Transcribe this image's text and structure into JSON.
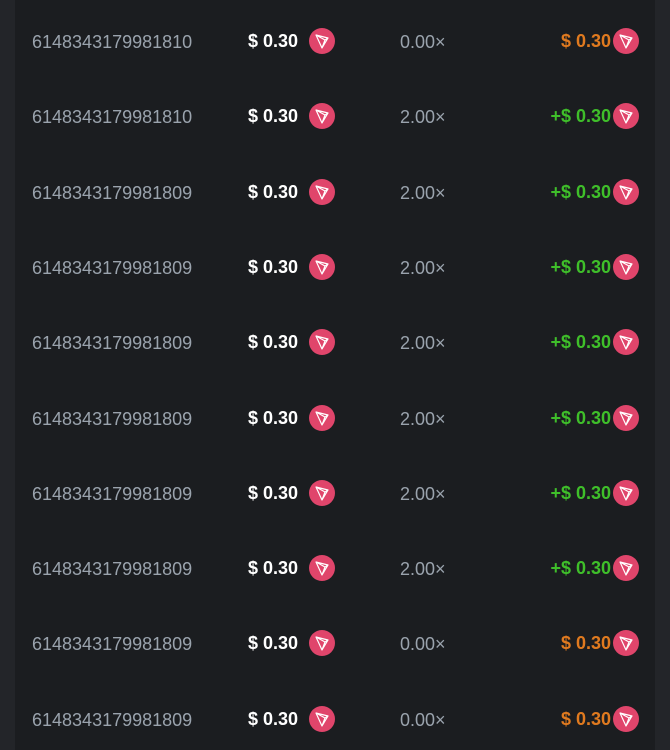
{
  "colors": {
    "loss": "#e07a1f",
    "win": "#3fbf2a",
    "coin": "#e0456b"
  },
  "coin_icon": "tron-icon",
  "rows": [
    {
      "id": "6148343179981810",
      "bet": "$ 0.30",
      "multiplier": "0.00×",
      "payout": "$ 0.30",
      "result": "loss"
    },
    {
      "id": "6148343179981810",
      "bet": "$ 0.30",
      "multiplier": "2.00×",
      "payout": "+$ 0.30",
      "result": "win"
    },
    {
      "id": "6148343179981809",
      "bet": "$ 0.30",
      "multiplier": "2.00×",
      "payout": "+$ 0.30",
      "result": "win"
    },
    {
      "id": "6148343179981809",
      "bet": "$ 0.30",
      "multiplier": "2.00×",
      "payout": "+$ 0.30",
      "result": "win"
    },
    {
      "id": "6148343179981809",
      "bet": "$ 0.30",
      "multiplier": "2.00×",
      "payout": "+$ 0.30",
      "result": "win"
    },
    {
      "id": "6148343179981809",
      "bet": "$ 0.30",
      "multiplier": "2.00×",
      "payout": "+$ 0.30",
      "result": "win"
    },
    {
      "id": "6148343179981809",
      "bet": "$ 0.30",
      "multiplier": "2.00×",
      "payout": "+$ 0.30",
      "result": "win"
    },
    {
      "id": "6148343179981809",
      "bet": "$ 0.30",
      "multiplier": "2.00×",
      "payout": "+$ 0.30",
      "result": "win"
    },
    {
      "id": "6148343179981809",
      "bet": "$ 0.30",
      "multiplier": "0.00×",
      "payout": "$ 0.30",
      "result": "loss"
    },
    {
      "id": "6148343179981809",
      "bet": "$ 0.30",
      "multiplier": "0.00×",
      "payout": "$ 0.30",
      "result": "loss"
    }
  ]
}
